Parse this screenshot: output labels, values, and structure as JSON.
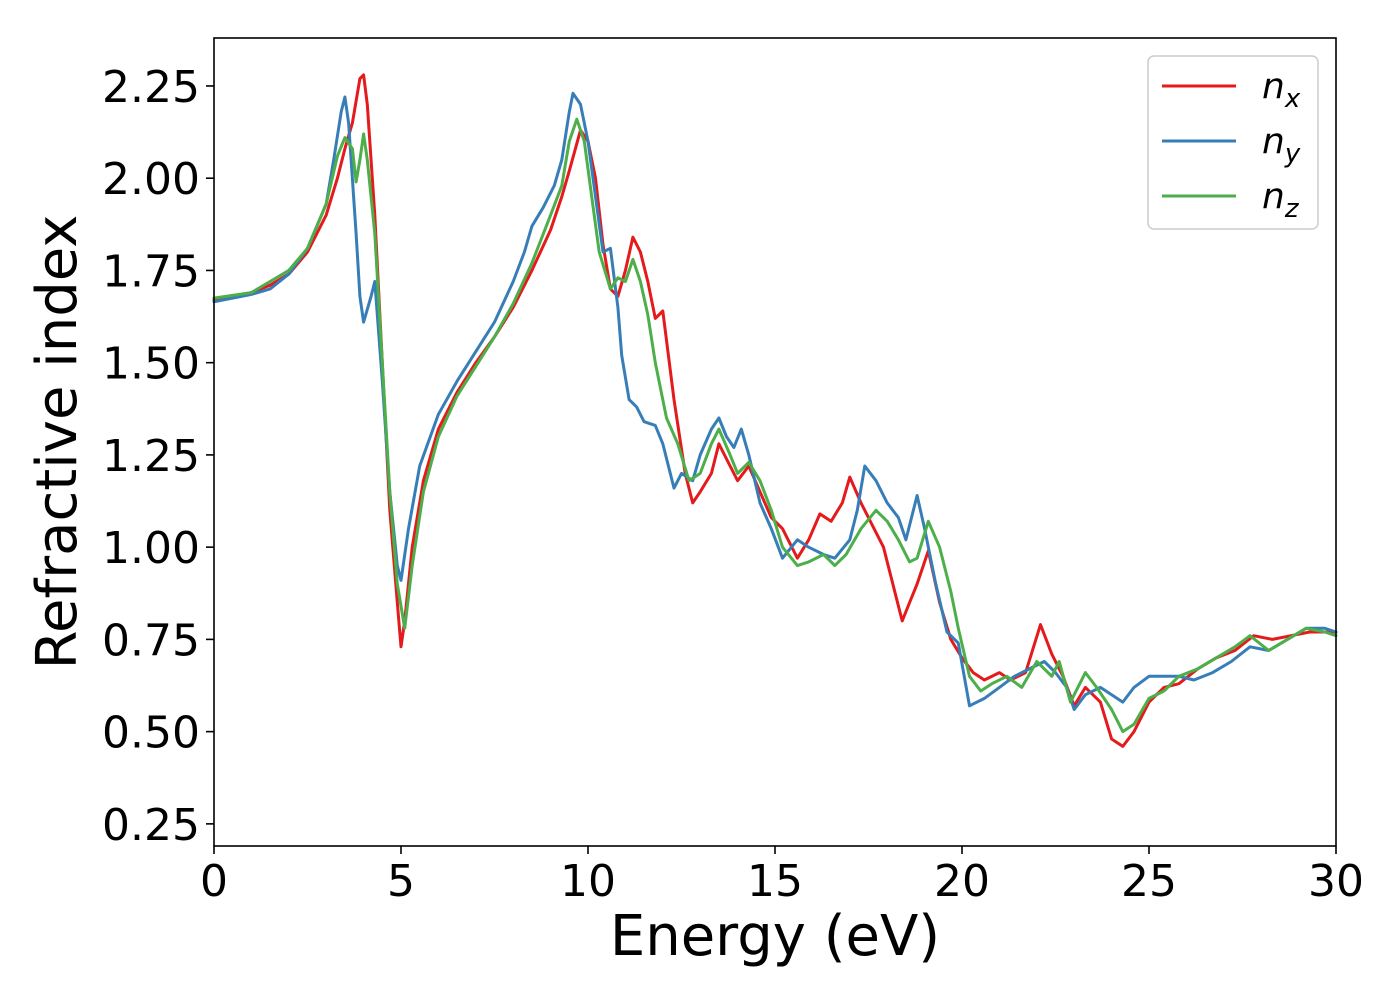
{
  "chart_data": {
    "type": "line",
    "xlabel": "Energy (eV)",
    "ylabel": "Refractive index",
    "xlim": [
      0,
      30
    ],
    "ylim": [
      0.19,
      2.38
    ],
    "xticks": [
      "0",
      "5",
      "10",
      "15",
      "20",
      "25",
      "30"
    ],
    "yticks": [
      "0.25",
      "0.50",
      "0.75",
      "1.00",
      "1.25",
      "1.50",
      "1.75",
      "2.00",
      "2.25"
    ],
    "grid": false,
    "legend_position": "top-right",
    "series": [
      {
        "name_base": "n",
        "name_sub": "x",
        "color": "#e41a1c",
        "points": [
          [
            0,
            1.67
          ],
          [
            1,
            1.69
          ],
          [
            1.5,
            1.71
          ],
          [
            2,
            1.74
          ],
          [
            2.5,
            1.8
          ],
          [
            3,
            1.9
          ],
          [
            3.3,
            2.0
          ],
          [
            3.5,
            2.08
          ],
          [
            3.7,
            2.15
          ],
          [
            3.9,
            2.27
          ],
          [
            4.0,
            2.28
          ],
          [
            4.1,
            2.2
          ],
          [
            4.3,
            1.9
          ],
          [
            4.5,
            1.5
          ],
          [
            4.7,
            1.1
          ],
          [
            4.9,
            0.85
          ],
          [
            5.0,
            0.73
          ],
          [
            5.1,
            0.8
          ],
          [
            5.3,
            1.0
          ],
          [
            5.6,
            1.18
          ],
          [
            6,
            1.32
          ],
          [
            6.5,
            1.42
          ],
          [
            7,
            1.5
          ],
          [
            7.5,
            1.57
          ],
          [
            8,
            1.65
          ],
          [
            8.5,
            1.75
          ],
          [
            9,
            1.86
          ],
          [
            9.3,
            1.95
          ],
          [
            9.5,
            2.02
          ],
          [
            9.8,
            2.13
          ],
          [
            10.0,
            2.1
          ],
          [
            10.2,
            2.0
          ],
          [
            10.4,
            1.82
          ],
          [
            10.6,
            1.7
          ],
          [
            10.8,
            1.68
          ],
          [
            11.0,
            1.75
          ],
          [
            11.2,
            1.84
          ],
          [
            11.4,
            1.8
          ],
          [
            11.6,
            1.72
          ],
          [
            11.8,
            1.62
          ],
          [
            12.0,
            1.64
          ],
          [
            12.3,
            1.4
          ],
          [
            12.6,
            1.2
          ],
          [
            12.8,
            1.12
          ],
          [
            13.0,
            1.15
          ],
          [
            13.3,
            1.2
          ],
          [
            13.5,
            1.28
          ],
          [
            13.8,
            1.22
          ],
          [
            14.0,
            1.18
          ],
          [
            14.3,
            1.22
          ],
          [
            14.6,
            1.15
          ],
          [
            14.9,
            1.08
          ],
          [
            15.2,
            1.05
          ],
          [
            15.6,
            0.97
          ],
          [
            15.9,
            1.02
          ],
          [
            16.2,
            1.09
          ],
          [
            16.5,
            1.07
          ],
          [
            16.8,
            1.12
          ],
          [
            17.0,
            1.19
          ],
          [
            17.3,
            1.12
          ],
          [
            17.6,
            1.06
          ],
          [
            17.9,
            1.0
          ],
          [
            18.2,
            0.88
          ],
          [
            18.4,
            0.8
          ],
          [
            18.6,
            0.85
          ],
          [
            18.8,
            0.9
          ],
          [
            19.1,
            0.99
          ],
          [
            19.4,
            0.85
          ],
          [
            19.7,
            0.75
          ],
          [
            20.0,
            0.7
          ],
          [
            20.3,
            0.66
          ],
          [
            20.6,
            0.64
          ],
          [
            21.0,
            0.66
          ],
          [
            21.3,
            0.64
          ],
          [
            21.7,
            0.66
          ],
          [
            22.1,
            0.79
          ],
          [
            22.4,
            0.71
          ],
          [
            22.7,
            0.65
          ],
          [
            23.0,
            0.57
          ],
          [
            23.3,
            0.62
          ],
          [
            23.7,
            0.58
          ],
          [
            24.0,
            0.48
          ],
          [
            24.3,
            0.46
          ],
          [
            24.6,
            0.5
          ],
          [
            25.0,
            0.58
          ],
          [
            25.4,
            0.62
          ],
          [
            25.8,
            0.63
          ],
          [
            26.3,
            0.67
          ],
          [
            26.8,
            0.7
          ],
          [
            27.3,
            0.72
          ],
          [
            27.8,
            0.76
          ],
          [
            28.3,
            0.75
          ],
          [
            28.8,
            0.76
          ],
          [
            29.3,
            0.77
          ],
          [
            30,
            0.77
          ]
        ]
      },
      {
        "name_base": "n",
        "name_sub": "y",
        "color": "#377eb8",
        "points": [
          [
            0,
            1.665
          ],
          [
            1,
            1.685
          ],
          [
            1.5,
            1.7
          ],
          [
            2,
            1.74
          ],
          [
            2.5,
            1.81
          ],
          [
            3,
            1.93
          ],
          [
            3.2,
            2.05
          ],
          [
            3.4,
            2.18
          ],
          [
            3.5,
            2.22
          ],
          [
            3.6,
            2.15
          ],
          [
            3.8,
            1.85
          ],
          [
            3.9,
            1.68
          ],
          [
            4.0,
            1.61
          ],
          [
            4.2,
            1.68
          ],
          [
            4.3,
            1.72
          ],
          [
            4.5,
            1.45
          ],
          [
            4.7,
            1.15
          ],
          [
            4.9,
            0.95
          ],
          [
            5.0,
            0.91
          ],
          [
            5.2,
            1.05
          ],
          [
            5.5,
            1.22
          ],
          [
            6,
            1.36
          ],
          [
            6.5,
            1.45
          ],
          [
            7,
            1.53
          ],
          [
            7.5,
            1.61
          ],
          [
            8,
            1.72
          ],
          [
            8.3,
            1.8
          ],
          [
            8.5,
            1.87
          ],
          [
            8.8,
            1.92
          ],
          [
            9.1,
            1.98
          ],
          [
            9.3,
            2.05
          ],
          [
            9.5,
            2.18
          ],
          [
            9.6,
            2.23
          ],
          [
            9.8,
            2.2
          ],
          [
            10.0,
            2.1
          ],
          [
            10.2,
            1.95
          ],
          [
            10.4,
            1.8
          ],
          [
            10.6,
            1.81
          ],
          [
            10.8,
            1.65
          ],
          [
            10.9,
            1.52
          ],
          [
            11.1,
            1.4
          ],
          [
            11.3,
            1.38
          ],
          [
            11.5,
            1.34
          ],
          [
            11.8,
            1.33
          ],
          [
            12.0,
            1.28
          ],
          [
            12.3,
            1.16
          ],
          [
            12.5,
            1.2
          ],
          [
            12.8,
            1.18
          ],
          [
            13.0,
            1.25
          ],
          [
            13.3,
            1.32
          ],
          [
            13.5,
            1.35
          ],
          [
            13.7,
            1.3
          ],
          [
            13.9,
            1.27
          ],
          [
            14.1,
            1.32
          ],
          [
            14.3,
            1.25
          ],
          [
            14.6,
            1.12
          ],
          [
            14.9,
            1.05
          ],
          [
            15.2,
            0.97
          ],
          [
            15.6,
            1.02
          ],
          [
            15.9,
            1.0
          ],
          [
            16.3,
            0.98
          ],
          [
            16.6,
            0.97
          ],
          [
            17.0,
            1.02
          ],
          [
            17.2,
            1.1
          ],
          [
            17.4,
            1.22
          ],
          [
            17.7,
            1.18
          ],
          [
            18.0,
            1.12
          ],
          [
            18.3,
            1.08
          ],
          [
            18.5,
            1.02
          ],
          [
            18.8,
            1.14
          ],
          [
            19.0,
            1.05
          ],
          [
            19.3,
            0.9
          ],
          [
            19.6,
            0.77
          ],
          [
            19.9,
            0.74
          ],
          [
            20.2,
            0.57
          ],
          [
            20.6,
            0.59
          ],
          [
            21.0,
            0.62
          ],
          [
            21.4,
            0.65
          ],
          [
            21.8,
            0.67
          ],
          [
            22.2,
            0.69
          ],
          [
            22.5,
            0.66
          ],
          [
            22.8,
            0.62
          ],
          [
            23.0,
            0.56
          ],
          [
            23.3,
            0.6
          ],
          [
            23.7,
            0.62
          ],
          [
            24.0,
            0.6
          ],
          [
            24.3,
            0.58
          ],
          [
            24.6,
            0.62
          ],
          [
            25.0,
            0.65
          ],
          [
            25.4,
            0.65
          ],
          [
            25.8,
            0.65
          ],
          [
            26.2,
            0.64
          ],
          [
            26.7,
            0.66
          ],
          [
            27.2,
            0.69
          ],
          [
            27.7,
            0.73
          ],
          [
            28.2,
            0.72
          ],
          [
            28.7,
            0.75
          ],
          [
            29.2,
            0.78
          ],
          [
            29.7,
            0.78
          ],
          [
            30,
            0.77
          ]
        ]
      },
      {
        "name_base": "n",
        "name_sub": "z",
        "color": "#4daf4a",
        "points": [
          [
            0,
            1.675
          ],
          [
            1,
            1.69
          ],
          [
            1.5,
            1.72
          ],
          [
            2,
            1.75
          ],
          [
            2.5,
            1.81
          ],
          [
            3,
            1.93
          ],
          [
            3.3,
            2.06
          ],
          [
            3.5,
            2.11
          ],
          [
            3.7,
            2.08
          ],
          [
            3.8,
            1.99
          ],
          [
            3.9,
            2.05
          ],
          [
            4.0,
            2.12
          ],
          [
            4.1,
            2.05
          ],
          [
            4.3,
            1.85
          ],
          [
            4.5,
            1.5
          ],
          [
            4.7,
            1.15
          ],
          [
            4.9,
            0.9
          ],
          [
            5.1,
            0.78
          ],
          [
            5.3,
            0.95
          ],
          [
            5.6,
            1.15
          ],
          [
            6,
            1.3
          ],
          [
            6.5,
            1.41
          ],
          [
            7,
            1.49
          ],
          [
            7.5,
            1.57
          ],
          [
            8,
            1.66
          ],
          [
            8.5,
            1.77
          ],
          [
            9,
            1.9
          ],
          [
            9.3,
            1.98
          ],
          [
            9.5,
            2.1
          ],
          [
            9.7,
            2.16
          ],
          [
            9.9,
            2.1
          ],
          [
            10.1,
            1.95
          ],
          [
            10.3,
            1.8
          ],
          [
            10.6,
            1.7
          ],
          [
            10.8,
            1.73
          ],
          [
            11.0,
            1.72
          ],
          [
            11.2,
            1.78
          ],
          [
            11.4,
            1.72
          ],
          [
            11.6,
            1.63
          ],
          [
            11.8,
            1.5
          ],
          [
            12.1,
            1.35
          ],
          [
            12.4,
            1.28
          ],
          [
            12.7,
            1.18
          ],
          [
            13.0,
            1.2
          ],
          [
            13.3,
            1.28
          ],
          [
            13.5,
            1.32
          ],
          [
            13.8,
            1.25
          ],
          [
            14.0,
            1.2
          ],
          [
            14.3,
            1.23
          ],
          [
            14.6,
            1.18
          ],
          [
            14.9,
            1.1
          ],
          [
            15.2,
            1.0
          ],
          [
            15.6,
            0.95
          ],
          [
            15.9,
            0.96
          ],
          [
            16.3,
            0.98
          ],
          [
            16.6,
            0.95
          ],
          [
            16.9,
            0.98
          ],
          [
            17.3,
            1.05
          ],
          [
            17.7,
            1.1
          ],
          [
            18.0,
            1.07
          ],
          [
            18.3,
            1.02
          ],
          [
            18.6,
            0.96
          ],
          [
            18.8,
            0.97
          ],
          [
            19.1,
            1.07
          ],
          [
            19.4,
            1.0
          ],
          [
            19.7,
            0.88
          ],
          [
            19.9,
            0.78
          ],
          [
            20.2,
            0.65
          ],
          [
            20.5,
            0.61
          ],
          [
            20.8,
            0.63
          ],
          [
            21.2,
            0.65
          ],
          [
            21.6,
            0.62
          ],
          [
            22.0,
            0.69
          ],
          [
            22.4,
            0.65
          ],
          [
            22.6,
            0.69
          ],
          [
            22.9,
            0.58
          ],
          [
            23.3,
            0.66
          ],
          [
            23.6,
            0.62
          ],
          [
            24.0,
            0.56
          ],
          [
            24.3,
            0.5
          ],
          [
            24.6,
            0.52
          ],
          [
            25.0,
            0.59
          ],
          [
            25.4,
            0.61
          ],
          [
            25.8,
            0.65
          ],
          [
            26.3,
            0.67
          ],
          [
            26.8,
            0.7
          ],
          [
            27.3,
            0.73
          ],
          [
            27.7,
            0.76
          ],
          [
            28.2,
            0.72
          ],
          [
            28.7,
            0.75
          ],
          [
            29.2,
            0.78
          ],
          [
            29.7,
            0.77
          ],
          [
            30,
            0.76
          ]
        ]
      }
    ]
  }
}
